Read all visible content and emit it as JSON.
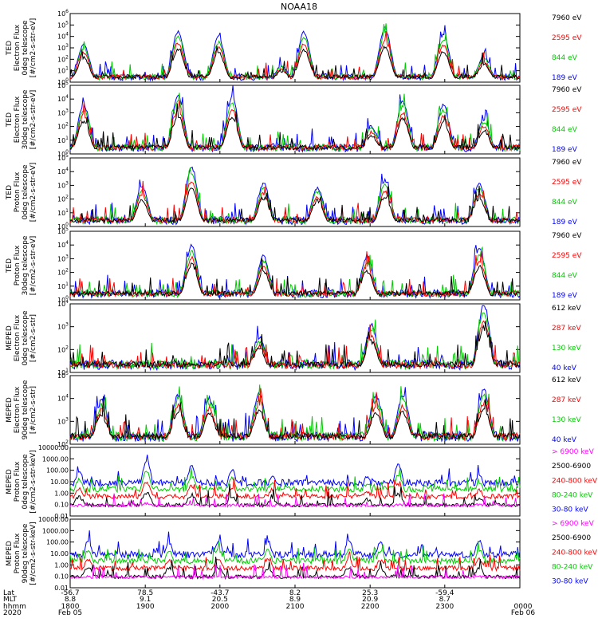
{
  "title": "NOAA18",
  "colors": {
    "black": "#000000",
    "red": "#ff0000",
    "green": "#00cc00",
    "blue": "#0000ff",
    "magenta": "#ff00ff"
  },
  "chart_data": [
    {
      "type": "line",
      "name": "ted-electron-0deg",
      "ylabel": [
        "TED",
        "Electron Flux",
        "0deg telescope",
        "[#/cm2-s-str-eV]"
      ],
      "ytick_labels": [
        "10^0",
        "10^1",
        "10^2",
        "10^3",
        "10^4",
        "10^5",
        "10^6"
      ],
      "ylim_log10": [
        0,
        6
      ],
      "log": true,
      "legend": [
        {
          "label": "7960 eV",
          "color": "black"
        },
        {
          "label": "2595 eV",
          "color": "red"
        },
        {
          "label": "844 eV",
          "color": "green"
        },
        {
          "label": "189 eV",
          "color": "blue"
        }
      ],
      "bursts": [
        [
          0.03,
          3.2
        ],
        [
          0.24,
          4.3
        ],
        [
          0.33,
          3.8
        ],
        [
          0.47,
          1.3
        ],
        [
          0.52,
          4.2
        ],
        [
          0.7,
          4.6
        ],
        [
          0.83,
          4.0
        ],
        [
          0.92,
          2.2
        ]
      ]
    },
    {
      "type": "line",
      "name": "ted-electron-30deg",
      "ylabel": [
        "TED",
        "Electron Flux",
        "30deg telescope",
        "[#/cm2-s-str-eV]"
      ],
      "ytick_labels": [
        "10^0",
        "10^1",
        "10^2",
        "10^3",
        "10^4",
        "10^5"
      ],
      "ylim_log10": [
        0,
        5
      ],
      "log": true,
      "legend": [
        {
          "label": "7960 eV",
          "color": "black"
        },
        {
          "label": "2595 eV",
          "color": "red"
        },
        {
          "label": "844 eV",
          "color": "green"
        },
        {
          "label": "189 eV",
          "color": "blue"
        }
      ],
      "bursts": [
        [
          0.03,
          3.5
        ],
        [
          0.24,
          4.1
        ],
        [
          0.36,
          4.0
        ],
        [
          0.67,
          1.9
        ],
        [
          0.74,
          3.7
        ],
        [
          0.83,
          3.4
        ],
        [
          0.92,
          2.4
        ]
      ]
    },
    {
      "type": "line",
      "name": "ted-proton-0deg",
      "ylabel": [
        "TED",
        "Proton Flux",
        "0deg telescope",
        "[#/cm2-s-str-eV]"
      ],
      "ytick_labels": [
        "10^0",
        "10^1",
        "10^2",
        "10^3",
        "10^4",
        "10^5"
      ],
      "ylim_log10": [
        0,
        5
      ],
      "log": true,
      "legend": [
        {
          "label": "7960 eV",
          "color": "black"
        },
        {
          "label": "2595 eV",
          "color": "red"
        },
        {
          "label": "844 eV",
          "color": "green"
        },
        {
          "label": "189 eV",
          "color": "blue"
        }
      ],
      "bursts": [
        [
          0.16,
          2.8
        ],
        [
          0.27,
          4.2
        ],
        [
          0.43,
          3.0
        ],
        [
          0.55,
          2.7
        ],
        [
          0.7,
          3.2
        ],
        [
          0.91,
          3.0
        ]
      ]
    },
    {
      "type": "line",
      "name": "ted-proton-30deg",
      "ylabel": [
        "TED",
        "Proton Flux",
        "30deg telescope",
        "[#/cm2-s-str-eV]"
      ],
      "ytick_labels": [
        "10^0",
        "10^1",
        "10^2",
        "10^3",
        "10^4",
        "10^5"
      ],
      "ylim_log10": [
        0,
        5
      ],
      "log": true,
      "legend": [
        {
          "label": "7960 eV",
          "color": "black"
        },
        {
          "label": "2595 eV",
          "color": "red"
        },
        {
          "label": "844 eV",
          "color": "green"
        },
        {
          "label": "189 eV",
          "color": "blue"
        }
      ],
      "bursts": [
        [
          0.27,
          3.8
        ],
        [
          0.43,
          3.0
        ],
        [
          0.66,
          3.0
        ],
        [
          0.91,
          3.5
        ]
      ]
    },
    {
      "type": "line",
      "name": "meped-electron-0deg",
      "ylabel": [
        "MEPED",
        "Electron Flux",
        "0deg telescope",
        "[#/cm2-s-str]"
      ],
      "ytick_labels": [
        "10^1",
        "10^2",
        "10^3",
        "10^4"
      ],
      "ylim_log10": [
        1,
        5
      ],
      "log": true,
      "legend": [
        {
          "label": "612 keV",
          "color": "black"
        },
        {
          "label": "287 keV",
          "color": "red"
        },
        {
          "label": "130 keV",
          "color": "green"
        },
        {
          "label": "40 keV",
          "color": "blue"
        }
      ],
      "bursts": [
        [
          0.42,
          2.9
        ],
        [
          0.67,
          3.6
        ],
        [
          0.92,
          4.8
        ]
      ]
    },
    {
      "type": "line",
      "name": "meped-electron-90deg",
      "ylabel": [
        "MEPED",
        "Electron Flux",
        "90deg telescope",
        "[#/cm2-s-str]"
      ],
      "ytick_labels": [
        "10^2",
        "10^3",
        "10^4",
        "10^5"
      ],
      "ylim_log10": [
        1.5,
        5.5
      ],
      "log": true,
      "legend": [
        {
          "label": "612 keV",
          "color": "black"
        },
        {
          "label": "287 keV",
          "color": "red"
        },
        {
          "label": "130 keV",
          "color": "green"
        },
        {
          "label": "40 keV",
          "color": "blue"
        }
      ],
      "bursts": [
        [
          0.07,
          3.9
        ],
        [
          0.24,
          4.2
        ],
        [
          0.31,
          4.0
        ],
        [
          0.42,
          4.3
        ],
        [
          0.68,
          4.2
        ],
        [
          0.74,
          4.2
        ],
        [
          0.92,
          4.5
        ]
      ]
    },
    {
      "type": "line",
      "name": "meped-proton-0deg",
      "ylabel": [
        "MEPED",
        "Proton Flux",
        "0deg telescope",
        "[#/cm2-s-str-keV]"
      ],
      "ytick_labels": [
        "0.01",
        "0.10",
        "1.00",
        "10.00",
        "100.00",
        "1000.00",
        "10000.00"
      ],
      "ylim_log10": [
        -2,
        4
      ],
      "log": true,
      "legend": [
        {
          "label": "> 6900 keV",
          "color": "magenta"
        },
        {
          "label": "2500-6900",
          "color": "black"
        },
        {
          "label": "240-800 keV",
          "color": "red"
        },
        {
          "label": "80-240 keV",
          "color": "green"
        },
        {
          "label": "30-80 keV",
          "color": "blue"
        }
      ],
      "bursts": [
        [
          0.02,
          1.8
        ],
        [
          0.17,
          2.7
        ],
        [
          0.27,
          2.2
        ],
        [
          0.36,
          1.9
        ],
        [
          0.45,
          1.4
        ],
        [
          0.66,
          1.3
        ],
        [
          0.73,
          2.3
        ],
        [
          0.91,
          1.5
        ]
      ]
    },
    {
      "type": "line",
      "name": "meped-proton-90deg",
      "ylabel": [
        "MEPED",
        "Proton Flux",
        "90deg telescope",
        "[#/cm2-s-str-keV]"
      ],
      "ytick_labels": [
        "0.01",
        "0.10",
        "1.00",
        "10.00",
        "100.00",
        "1000.00",
        "10000.00"
      ],
      "ylim_log10": [
        -2,
        4
      ],
      "log": true,
      "legend": [
        {
          "label": "> 6900 keV",
          "color": "magenta"
        },
        {
          "label": "2500-6900",
          "color": "black"
        },
        {
          "label": "240-800 keV",
          "color": "red"
        },
        {
          "label": "80-240 keV",
          "color": "green"
        },
        {
          "label": "30-80 keV",
          "color": "blue"
        }
      ],
      "bursts": [
        [
          0.04,
          1.9
        ],
        [
          0.22,
          1.8
        ],
        [
          0.33,
          2.0
        ],
        [
          0.44,
          1.9
        ],
        [
          0.62,
          2.0
        ],
        [
          0.69,
          1.8
        ],
        [
          0.91,
          1.9
        ]
      ]
    }
  ],
  "x_axis": {
    "row_labels": [
      "Lat",
      "MLT",
      "hhmm",
      "2020"
    ],
    "ticks": [
      {
        "frac": 0.0,
        "lat": "-56.7",
        "mlt": "8.8",
        "hhmm": "1800",
        "date": "Feb 05"
      },
      {
        "frac": 0.167,
        "lat": "78.5",
        "mlt": "9.1",
        "hhmm": "1900",
        "date": ""
      },
      {
        "frac": 0.333,
        "lat": "-43.7",
        "mlt": "20.5",
        "hhmm": "2000",
        "date": ""
      },
      {
        "frac": 0.5,
        "lat": "8.2",
        "mlt": "8.9",
        "hhmm": "2100",
        "date": ""
      },
      {
        "frac": 0.667,
        "lat": "25.3",
        "mlt": "20.9",
        "hhmm": "2200",
        "date": ""
      },
      {
        "frac": 0.833,
        "lat": "-59.4",
        "mlt": "8.7",
        "hhmm": "2300",
        "date": ""
      },
      {
        "frac": 1.0,
        "lat": "",
        "mlt": "",
        "hhmm": "0000",
        "date": "Feb 06"
      }
    ]
  }
}
